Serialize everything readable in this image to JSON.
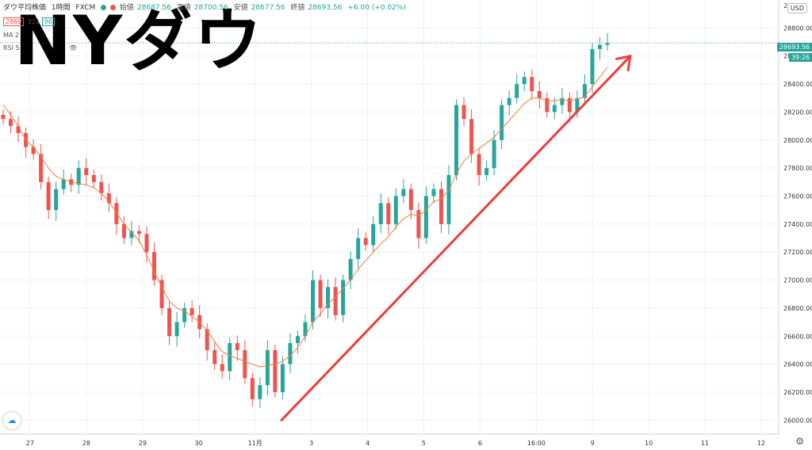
{
  "header": {
    "symbol": "ダウ平均株価",
    "interval": "1時間",
    "exchange": "FXCM",
    "open_label": "始値",
    "open": "28687.56",
    "high_label": "高値",
    "high": "28700.56",
    "low_label": "安値",
    "low": "28677.56",
    "close_label": "終値",
    "close": "28693.56",
    "change": "+6.00 (+0.02%)"
  },
  "indicators": {
    "row1_red": "2869",
    "row1_mid": "321",
    "row1_grn": "96",
    "ma_label": "MA 2",
    "rsi_label": "RSI 5"
  },
  "overlay_title": "NYダウ",
  "currency": "USD",
  "last_price": "28693.56",
  "countdown": "39:26",
  "icons": {
    "settings": "gear-icon",
    "logo": "tradingview-logo-icon",
    "eye": "eye-icon"
  },
  "colors": {
    "up": "#26a69a",
    "down": "#ef5350",
    "ma": "#f57c3a",
    "arrow": "#ef3b3b",
    "grid": "#eef0f3"
  },
  "chart_data": {
    "type": "candlestick",
    "ylim": [
      25900,
      29000
    ],
    "y_ticks": [
      "26000.00",
      "26200.00",
      "26400.00",
      "26600.00",
      "26800.00",
      "27000.00",
      "27200.00",
      "27400.00",
      "27600.00",
      "27800.00",
      "28000.00",
      "28200.00",
      "28400.00",
      "28600.00",
      "28800.00"
    ],
    "y_tick_top": "2",
    "x_ticks": [
      "27",
      "28",
      "29",
      "30",
      "11月",
      "3",
      "4",
      "5",
      "6",
      "16:00",
      "9",
      "10",
      "11",
      "12"
    ],
    "close_series": [
      28150,
      28100,
      28050,
      27950,
      27900,
      27700,
      27500,
      27650,
      27720,
      27680,
      27800,
      27750,
      27700,
      27620,
      27550,
      27400,
      27300,
      27350,
      27330,
      27200,
      27000,
      26800,
      26600,
      26700,
      26800,
      26750,
      26650,
      26500,
      26400,
      26350,
      26550,
      26500,
      26300,
      26150,
      26250,
      26500,
      26200,
      26400,
      26550,
      26600,
      26700,
      27000,
      26800,
      26950,
      26750,
      27000,
      27150,
      27300,
      27250,
      27400,
      27550,
      27400,
      27600,
      27650,
      27500,
      27300,
      27600,
      27650,
      27400,
      27750,
      28250,
      28150,
      27900,
      27750,
      27800,
      28000,
      28250,
      28300,
      28400,
      28450,
      28350,
      28300,
      28200,
      28250,
      28300,
      28200,
      28300,
      28400,
      28650,
      28680,
      28693.56
    ],
    "ma_series": [
      28250,
      28180,
      28100,
      28000,
      27950,
      27880,
      27800,
      27740,
      27720,
      27700,
      27690,
      27680,
      27660,
      27620,
      27560,
      27480,
      27400,
      27340,
      27280,
      27180,
      27060,
      26950,
      26850,
      26800,
      26780,
      26740,
      26700,
      26640,
      26560,
      26490,
      26460,
      26440,
      26420,
      26400,
      26380,
      26390,
      26400,
      26420,
      26460,
      26520,
      26600,
      26700,
      26760,
      26830,
      26880,
      26940,
      27000,
      27080,
      27140,
      27200,
      27260,
      27310,
      27380,
      27440,
      27470,
      27460,
      27500,
      27560,
      27580,
      27640,
      27760,
      27850,
      27900,
      27940,
      27980,
      28020,
      28080,
      28140,
      28200,
      28260,
      28300,
      28300,
      28280,
      28280,
      28290,
      28280,
      28290,
      28310,
      28380,
      28450,
      28520
    ],
    "trend_arrow": {
      "from_y": 26000,
      "to_y": 28600
    }
  }
}
